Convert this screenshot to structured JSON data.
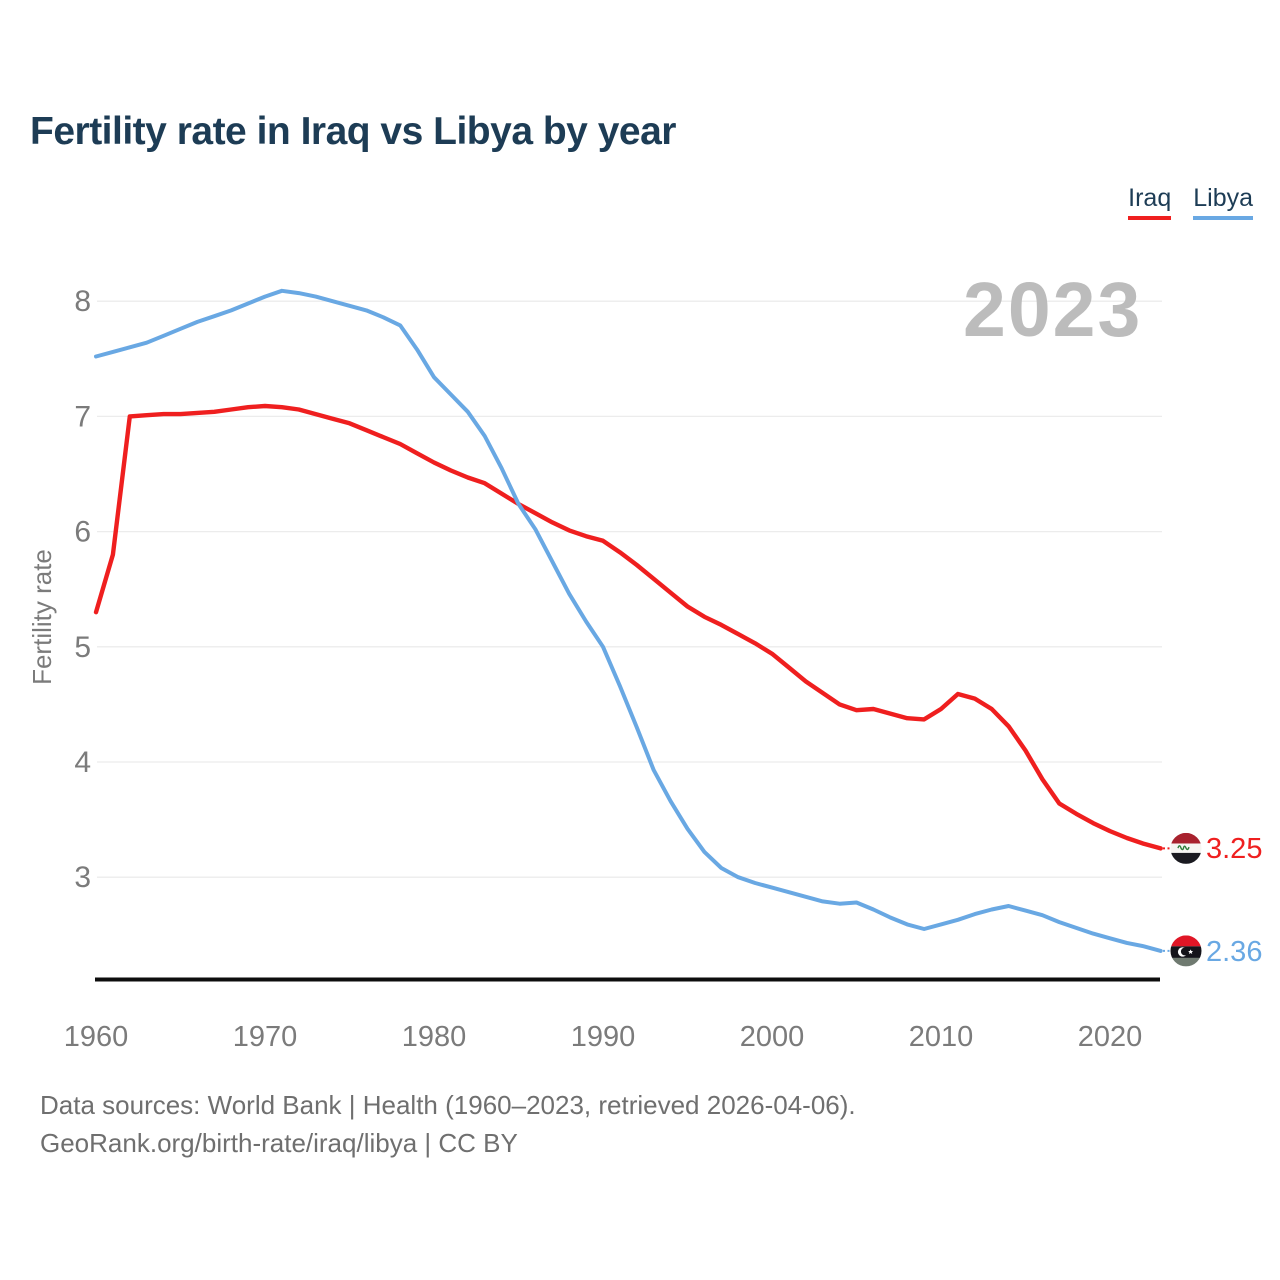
{
  "title": "Fertility rate in Iraq vs Libya by year",
  "watermark": "2023",
  "legend": [
    {
      "label": "Iraq",
      "color": "#ef1f1f"
    },
    {
      "label": "Libya",
      "color": "#69a8e3"
    }
  ],
  "y_axis_title": "Fertility rate",
  "footer": {
    "line1": "Data sources: World Bank | Health (1960–2023, retrieved 2026-04-06).",
    "line2": "GeoRank.org/birth-rate/iraq/libya | CC BY"
  },
  "chart_data": {
    "type": "line",
    "title": "Fertility rate in Iraq vs Libya by year",
    "xlabel": "",
    "ylabel": "Fertility rate",
    "grid": true,
    "legend_position": "top-right",
    "xlim": [
      1960,
      2023
    ],
    "ylim": [
      2.15,
      8.5
    ],
    "x_ticks": [
      1960,
      1970,
      1980,
      1990,
      2000,
      2010,
      2020
    ],
    "y_ticks": [
      3,
      4,
      5,
      6,
      7,
      8
    ],
    "x": [
      1960,
      1961,
      1962,
      1963,
      1964,
      1965,
      1966,
      1967,
      1968,
      1969,
      1970,
      1971,
      1972,
      1973,
      1974,
      1975,
      1976,
      1977,
      1978,
      1979,
      1980,
      1981,
      1982,
      1983,
      1984,
      1985,
      1986,
      1987,
      1988,
      1989,
      1990,
      1991,
      1992,
      1993,
      1994,
      1995,
      1996,
      1997,
      1998,
      1999,
      2000,
      2001,
      2002,
      2003,
      2004,
      2005,
      2006,
      2007,
      2008,
      2009,
      2010,
      2011,
      2012,
      2013,
      2014,
      2015,
      2016,
      2017,
      2018,
      2019,
      2020,
      2021,
      2022,
      2023
    ],
    "series": [
      {
        "name": "Iraq",
        "color": "#ef1f1f",
        "end_label": "3.25",
        "end_value": 3.25,
        "values": [
          5.3,
          5.8,
          7.0,
          7.01,
          7.02,
          7.02,
          7.03,
          7.04,
          7.06,
          7.08,
          7.09,
          7.08,
          7.06,
          7.02,
          6.98,
          6.94,
          6.88,
          6.82,
          6.76,
          6.68,
          6.6,
          6.53,
          6.47,
          6.42,
          6.33,
          6.24,
          6.16,
          6.08,
          6.01,
          5.96,
          5.92,
          5.82,
          5.71,
          5.59,
          5.47,
          5.35,
          5.26,
          5.19,
          5.11,
          5.03,
          4.94,
          4.82,
          4.7,
          4.6,
          4.5,
          4.45,
          4.46,
          4.42,
          4.38,
          4.37,
          4.46,
          4.59,
          4.55,
          4.46,
          4.31,
          4.1,
          3.85,
          3.64,
          3.55,
          3.47,
          3.4,
          3.34,
          3.29,
          3.25
        ]
      },
      {
        "name": "Libya",
        "color": "#69a8e3",
        "end_label": "2.36",
        "end_value": 2.36,
        "values": [
          7.52,
          7.56,
          7.6,
          7.64,
          7.7,
          7.76,
          7.82,
          7.87,
          7.92,
          7.98,
          8.04,
          8.09,
          8.07,
          8.04,
          8.0,
          7.96,
          7.92,
          7.86,
          7.79,
          7.58,
          7.34,
          7.19,
          7.04,
          6.83,
          6.55,
          6.24,
          6.02,
          5.74,
          5.46,
          5.22,
          5.0,
          4.66,
          4.3,
          3.93,
          3.66,
          3.42,
          3.22,
          3.08,
          3.0,
          2.95,
          2.91,
          2.87,
          2.83,
          2.79,
          2.77,
          2.78,
          2.72,
          2.65,
          2.59,
          2.55,
          2.59,
          2.63,
          2.68,
          2.72,
          2.75,
          2.71,
          2.67,
          2.61,
          2.56,
          2.51,
          2.47,
          2.43,
          2.4,
          2.36
        ]
      }
    ]
  }
}
